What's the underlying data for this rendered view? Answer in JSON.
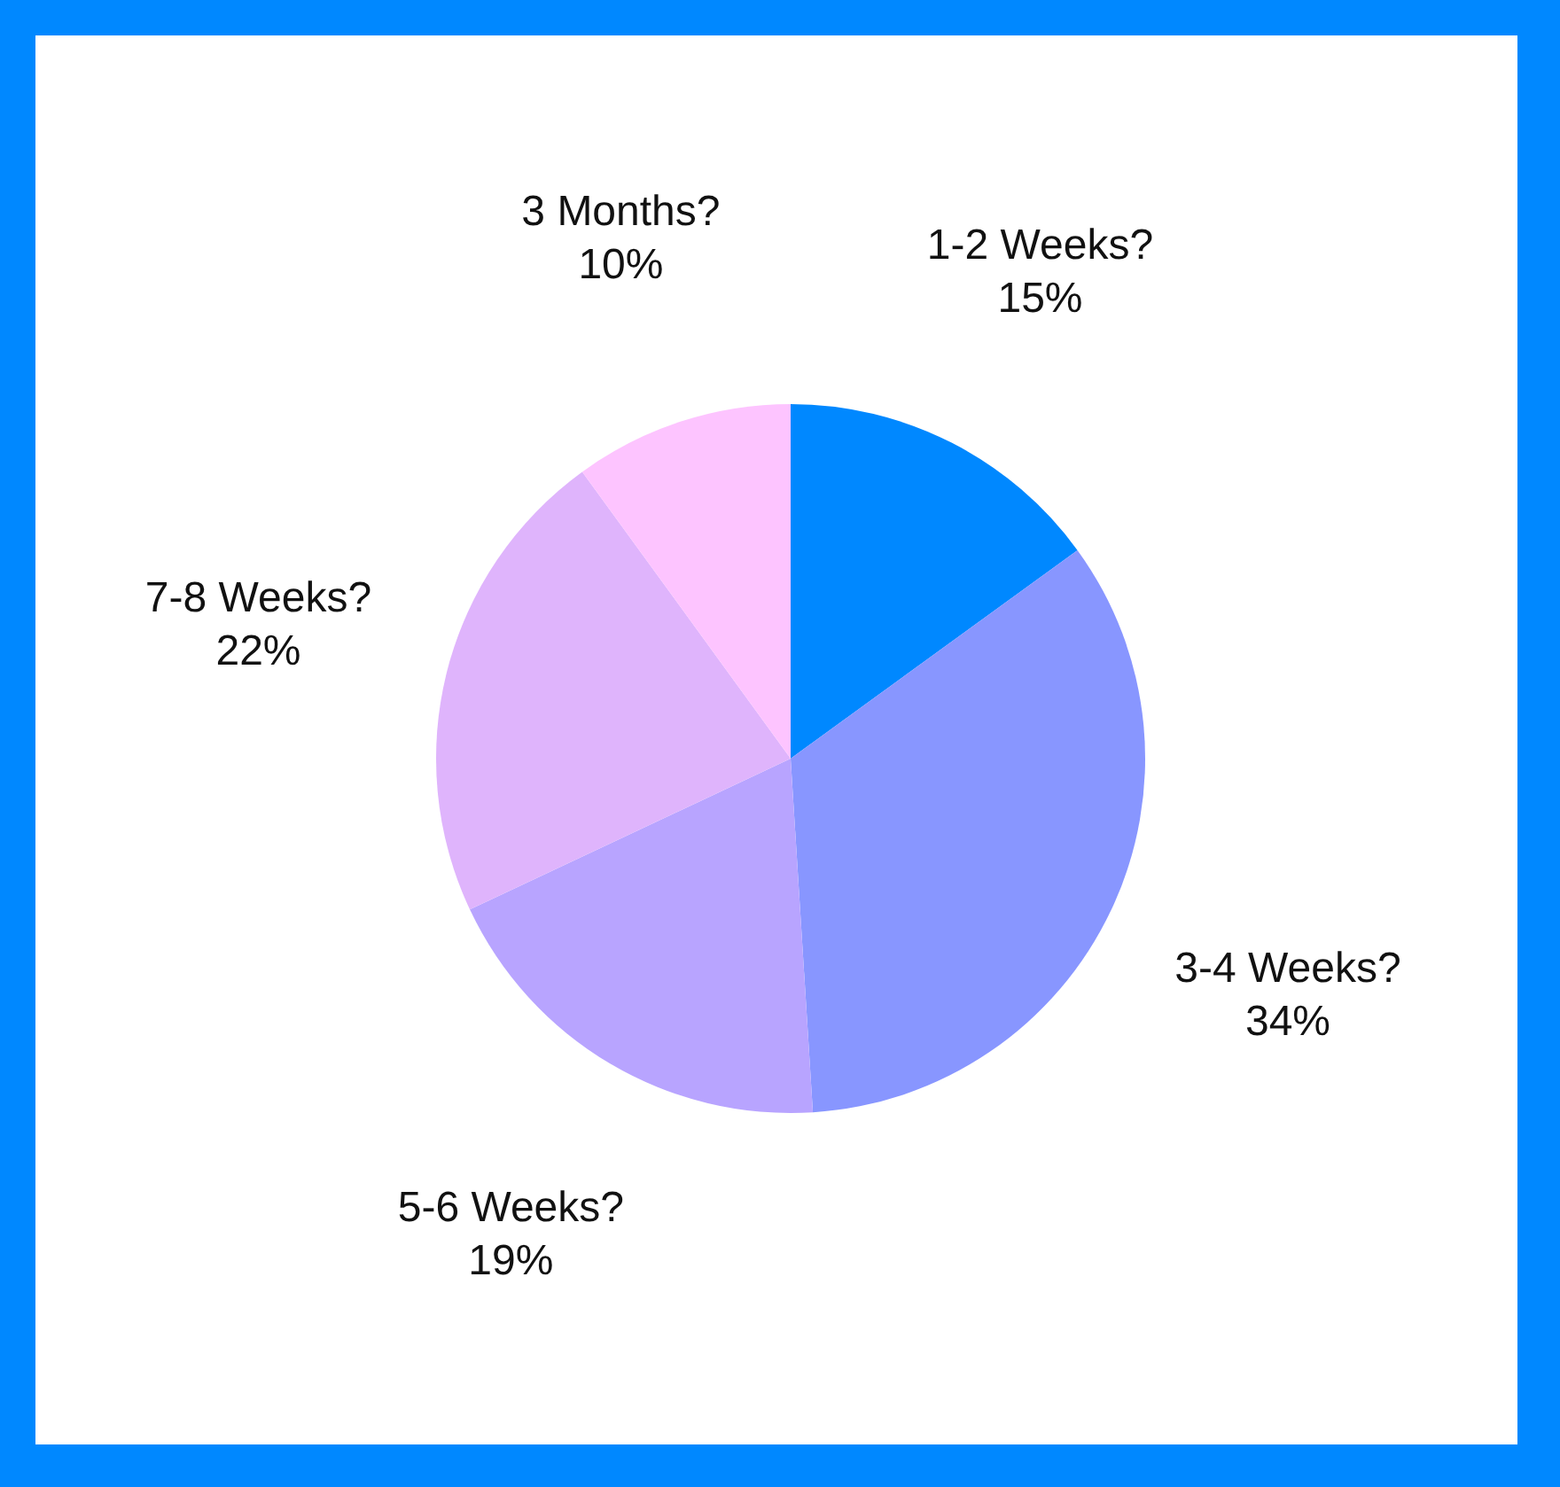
{
  "chart_data": {
    "type": "pie",
    "categories": [
      "1-2 Weeks?",
      "3-4 Weeks?",
      "5-6 Weeks?",
      "7-8 Weeks?",
      "3 Months?"
    ],
    "values": [
      15,
      34,
      19,
      22,
      10
    ],
    "value_labels": [
      "15%",
      "34%",
      "19%",
      "22%",
      "10%"
    ],
    "colors": [
      "#0088ff",
      "#8896ff",
      "#b8a4ff",
      "#dfb4fc",
      "#fdc4ff"
    ]
  }
}
